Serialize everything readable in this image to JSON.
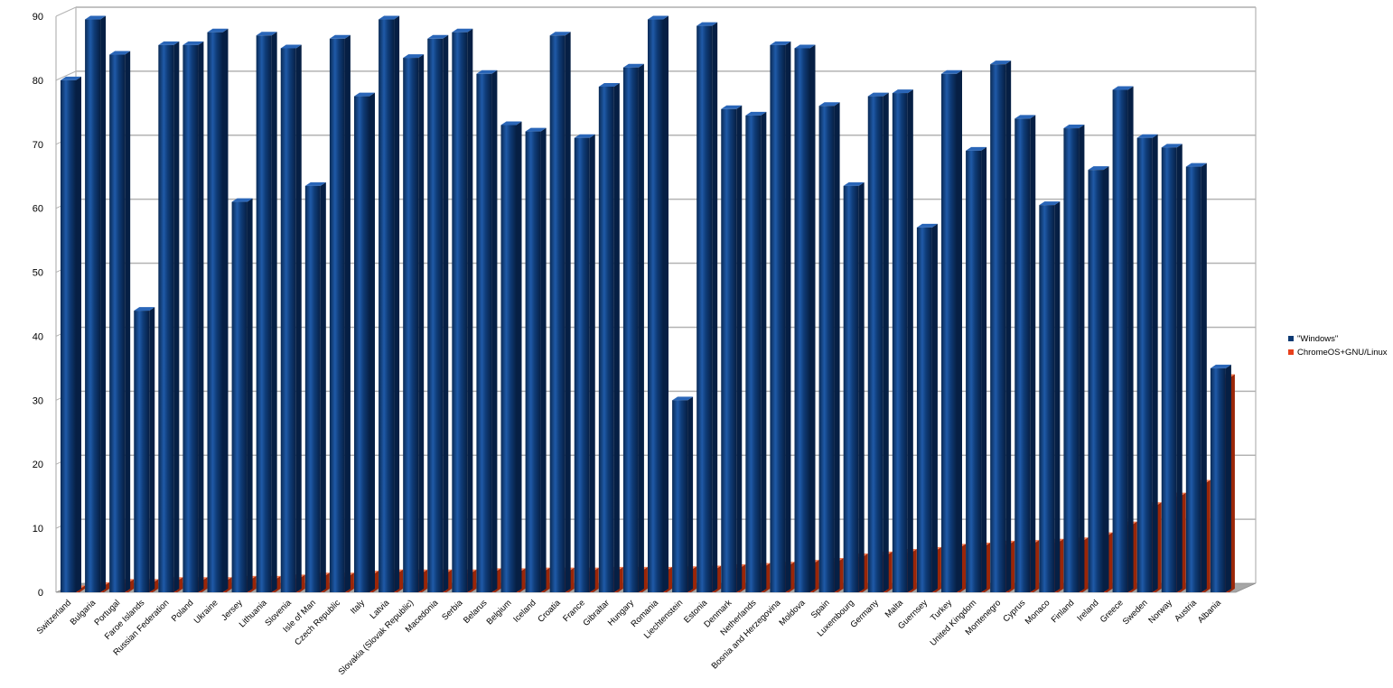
{
  "chart_data": {
    "type": "bar",
    "title": "",
    "xlabel": "",
    "ylabel": "",
    "ylim": [
      0,
      90
    ],
    "yticks": [
      0,
      10,
      20,
      30,
      40,
      50,
      60,
      70,
      80,
      90
    ],
    "grid": true,
    "legend_position": "right",
    "categories": [
      "Switzerland",
      "Bulgaria",
      "Portugal",
      "Faroe Islands",
      "Russian Federation",
      "Poland",
      "Ukraine",
      "Jersey",
      "Lithuania",
      "Slovenia",
      "Isle of Man",
      "Czech Republic",
      "Italy",
      "Latvia",
      "Slovakia (Slovak Republic)",
      "Macedonia",
      "Serbia",
      "Belarus",
      "Belgium",
      "Iceland",
      "Croatia",
      "France",
      "Gibraltar",
      "Hungary",
      "Romania",
      "Liechtenstein",
      "Estonia",
      "Denmark",
      "Netherlands",
      "Bosnia and Herzegovina",
      "Moldova",
      "Spain",
      "Luxembourg",
      "Germany",
      "Malta",
      "Guernsey",
      "Turkey",
      "United Kingdom",
      "Montenegro",
      "Cyprus",
      "Monaco",
      "Finland",
      "Ireland",
      "Greece",
      "Sweden",
      "Norway",
      "Austria",
      "Albania"
    ],
    "series": [
      {
        "name": "\"Windows\"",
        "color": "#0d3a73",
        "values": [
          80,
          89.5,
          84,
          44,
          85.5,
          85.5,
          87.5,
          61,
          87,
          85,
          63.5,
          86.5,
          77.5,
          89.5,
          83.5,
          86.5,
          87.5,
          81,
          73,
          72,
          87,
          71,
          79,
          82,
          89.5,
          30,
          88.5,
          75.5,
          74.5,
          85.5,
          85,
          76,
          63.5,
          77.5,
          78,
          57,
          81,
          69,
          82.5,
          74,
          60.5,
          72.5,
          66,
          78.5,
          71,
          69.5,
          66.5,
          35
        ]
      },
      {
        "name": "ChromeOS+GNU/Linux",
        "color": "#e8401c",
        "values": [
          0.5,
          1,
          1.5,
          1.5,
          1.8,
          1.8,
          1.8,
          2,
          2,
          2.2,
          2.5,
          2.5,
          2.8,
          3,
          3,
          3,
          3,
          3.2,
          3.2,
          3.3,
          3.3,
          3.3,
          3.4,
          3.4,
          3.4,
          3.5,
          3.6,
          3.8,
          4,
          4.2,
          4.5,
          4.8,
          5.5,
          5.8,
          6.2,
          6.5,
          7,
          7.2,
          7.5,
          7.6,
          7.8,
          8,
          8.8,
          10.5,
          13.5,
          15,
          17,
          33.5
        ]
      }
    ]
  }
}
